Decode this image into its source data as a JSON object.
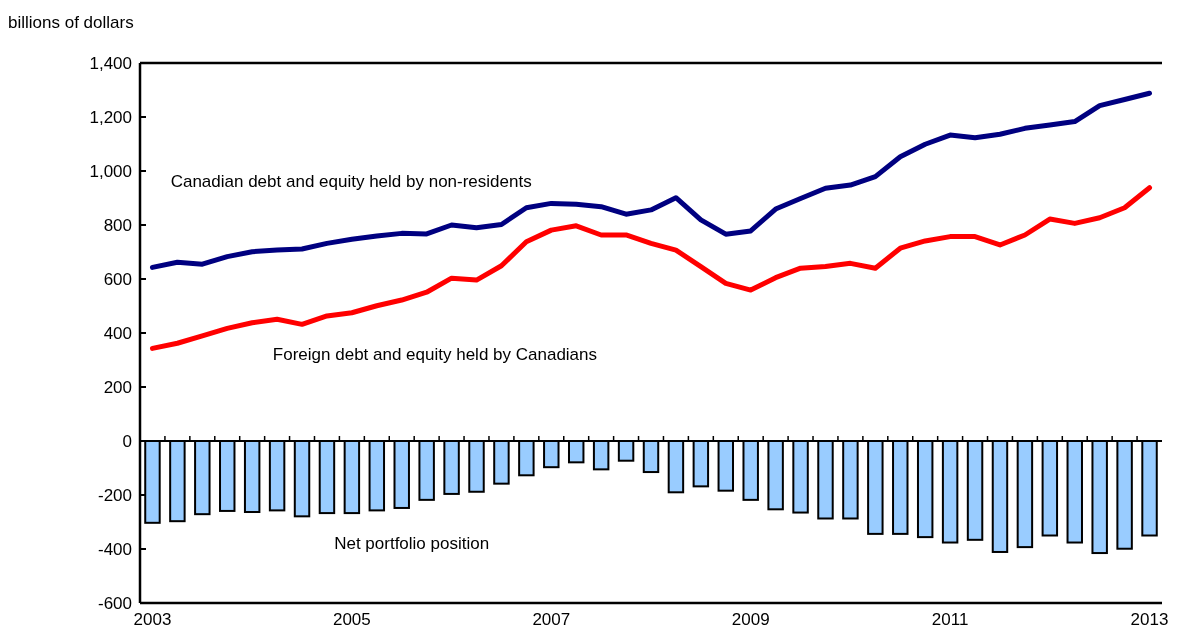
{
  "chart_data": {
    "type": "line",
    "ylabel": "billions of dollars",
    "categories": [
      "2003",
      null,
      null,
      null,
      null,
      null,
      null,
      null,
      "2005",
      null,
      null,
      null,
      null,
      null,
      null,
      null,
      "2007",
      null,
      null,
      null,
      null,
      null,
      null,
      null,
      "2009",
      null,
      null,
      null,
      null,
      null,
      null,
      null,
      "2011",
      null,
      null,
      null,
      null,
      null,
      null,
      null,
      "2013"
    ],
    "series": [
      {
        "name": "Canadian debt and equity held by non-residents",
        "color": "#000080",
        "values": [
          643,
          662,
          655,
          683,
          701,
          707,
          711,
          732,
          747,
          759,
          769,
          767,
          800,
          790,
          802,
          864,
          880,
          877,
          868,
          840,
          856,
          901,
          819,
          766,
          778,
          859,
          898,
          936,
          948,
          979,
          1053,
          1099,
          1133,
          1123,
          1136,
          1158,
          1170,
          1183,
          1242,
          1265,
          1288
        ]
      },
      {
        "name": "Foreign debt and equity held by Canadians",
        "color": "#ff0000",
        "values": [
          343,
          362,
          389,
          417,
          438,
          451,
          432,
          463,
          475,
          501,
          522,
          551,
          603,
          596,
          649,
          738,
          781,
          797,
          763,
          763,
          732,
          707,
          646,
          584,
          559,
          605,
          640,
          646,
          658,
          640,
          714,
          741,
          757,
          757,
          726,
          763,
          822,
          806,
          827,
          864,
          938
        ]
      },
      {
        "name": "Net portfolio position",
        "type": "bar",
        "color": "#99ccff",
        "values": [
          -303,
          -297,
          -271,
          -259,
          -263,
          -257,
          -279,
          -267,
          -267,
          -257,
          -248,
          -218,
          -196,
          -188,
          -158,
          -127,
          -97,
          -79,
          -105,
          -73,
          -115,
          -190,
          -168,
          -184,
          -218,
          -253,
          -265,
          -287,
          -287,
          -344,
          -344,
          -356,
          -376,
          -366,
          -411,
          -393,
          -350,
          -376,
          -415,
          -399,
          -350
        ]
      }
    ],
    "ylim": [
      -600,
      1400
    ],
    "yticks": [
      -600,
      -400,
      -200,
      0,
      200,
      400,
      600,
      800,
      {
        "value": 1000,
        "label": "1,000"
      },
      {
        "value": 1200,
        "label": "1,200"
      },
      {
        "value": 1400,
        "label": "1,400"
      }
    ],
    "legend": false
  }
}
